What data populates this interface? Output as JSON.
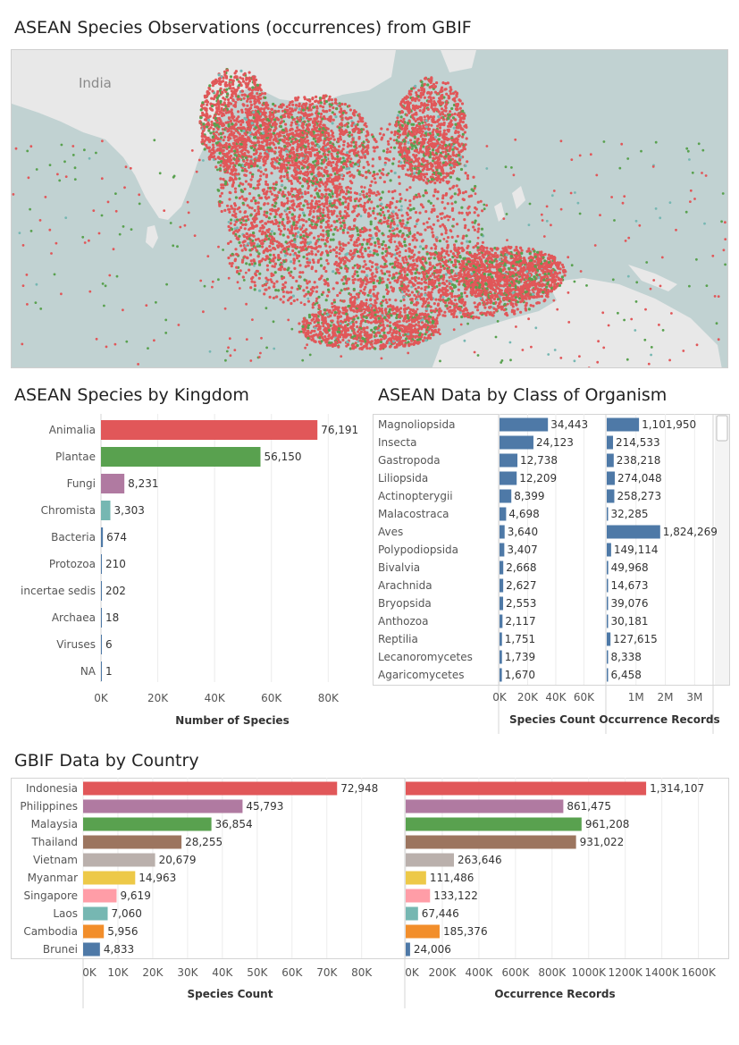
{
  "titles": {
    "map": "ASEAN Species Observations (occurrences) from GBIF",
    "kingdom": "ASEAN Species by Kingdom",
    "class": "ASEAN Data by Class of Organism",
    "country": "GBIF Data by Country"
  },
  "map": {
    "label_india": "India",
    "land_color": "#e8e8e8",
    "water_color": "#c1d2d2",
    "point_colors": [
      "#e15759",
      "#59a14f",
      "#76b7b2"
    ]
  },
  "chart_data": [
    {
      "id": "kingdom",
      "type": "bar",
      "orientation": "horizontal",
      "title": "ASEAN Species by Kingdom",
      "categories": [
        "Animalia",
        "Plantae",
        "Fungi",
        "Chromista",
        "Bacteria",
        "Protozoa",
        "incertae sedis",
        "Archaea",
        "Viruses",
        "NA"
      ],
      "values": [
        76191,
        56150,
        8231,
        3303,
        674,
        210,
        202,
        18,
        6,
        1
      ],
      "value_labels": [
        "76,191",
        "56,150",
        "8,231",
        "3,303",
        "674",
        "210",
        "202",
        "18",
        "6",
        "1"
      ],
      "colors": [
        "#e15759",
        "#59a14f",
        "#b07aa1",
        "#76b7b2",
        "#4e79a7",
        "#4e79a7",
        "#4e79a7",
        "#4e79a7",
        "#4e79a7",
        "#4e79a7"
      ],
      "xlabel": "Number of Species",
      "xticks": [
        "0K",
        "20K",
        "40K",
        "60K",
        "80K"
      ],
      "xlim": [
        0,
        95000
      ],
      "grid": true
    },
    {
      "id": "class",
      "type": "bar",
      "orientation": "horizontal",
      "title": "ASEAN Data by Class of Organism",
      "categories": [
        "Magnoliopsida",
        "Insecta",
        "Gastropoda",
        "Liliopsida",
        "Actinopterygii",
        "Malacostraca",
        "Aves",
        "Polypodiopsida",
        "Bivalvia",
        "Arachnida",
        "Bryopsida",
        "Anthozoa",
        "Reptilia",
        "Lecanoromycetes",
        "Agaricomycetes"
      ],
      "color": "#4e79a7",
      "series": [
        {
          "name": "Species Count",
          "values": [
            34443,
            24123,
            12738,
            12209,
            8399,
            4698,
            3640,
            3407,
            2668,
            2627,
            2553,
            2117,
            1751,
            1739,
            1670
          ],
          "value_labels": [
            "34,443",
            "24,123",
            "12,738",
            "12,209",
            "8,399",
            "4,698",
            "3,640",
            "3,407",
            "2,668",
            "2,627",
            "2,553",
            "2,117",
            "1,751",
            "1,739",
            "1,670"
          ],
          "xticks": [
            "0K",
            "20K",
            "40K",
            "60K"
          ],
          "xlim": [
            0,
            75000
          ]
        },
        {
          "name": "Occurrence Records",
          "values": [
            1101950,
            214533,
            238218,
            274048,
            258273,
            32285,
            1824269,
            149114,
            49968,
            14673,
            39076,
            30181,
            127615,
            8338,
            6458
          ],
          "value_labels": [
            "1,101,950",
            "214,533",
            "238,218",
            "274,048",
            "258,273",
            "32,285",
            "1,824,269",
            "149,114",
            "49,968",
            "14,673",
            "39,076",
            "30,181",
            "127,615",
            "8,338",
            "6,458"
          ],
          "xticks": [
            "1M",
            "2M",
            "3M"
          ],
          "xlim": [
            0,
            3600000
          ]
        }
      ],
      "grid": true
    },
    {
      "id": "country",
      "type": "bar",
      "orientation": "horizontal",
      "title": "GBIF Data by Country",
      "categories": [
        "Indonesia",
        "Philippines",
        "Malaysia",
        "Thailand",
        "Vietnam",
        "Myanmar",
        "Singapore",
        "Laos",
        "Cambodia",
        "Brunei"
      ],
      "colors": [
        "#e15759",
        "#b07aa1",
        "#59a14f",
        "#9c755f",
        "#bab0ac",
        "#edc948",
        "#ff9da7",
        "#76b7b2",
        "#f28e2b",
        "#4e79a7"
      ],
      "series": [
        {
          "name": "Species Count",
          "values": [
            72948,
            45793,
            36854,
            28255,
            20679,
            14963,
            9619,
            7060,
            5956,
            4833
          ],
          "value_labels": [
            "72,948",
            "45,793",
            "36,854",
            "28,255",
            "20,679",
            "14,963",
            "9,619",
            "7,060",
            "5,956",
            "4,833"
          ],
          "xticks": [
            "0K",
            "10K",
            "20K",
            "30K",
            "40K",
            "50K",
            "60K",
            "70K",
            "80K"
          ],
          "xlim": [
            0,
            87000
          ]
        },
        {
          "name": "Occurrence Records",
          "values": [
            1314107,
            861475,
            961208,
            931022,
            263646,
            111486,
            133122,
            67446,
            185376,
            24006
          ],
          "value_labels": [
            "1,314,107",
            "861,475",
            "961,208",
            "931,022",
            "263,646",
            "111,486",
            "133,122",
            "67,446",
            "185,376",
            "24,006"
          ],
          "xticks": [
            "0K",
            "200K",
            "400K",
            "600K",
            "800K",
            "1000K",
            "1200K",
            "1400K",
            "1600K"
          ],
          "xlim": [
            0,
            1680000
          ]
        }
      ],
      "grid": true
    }
  ]
}
